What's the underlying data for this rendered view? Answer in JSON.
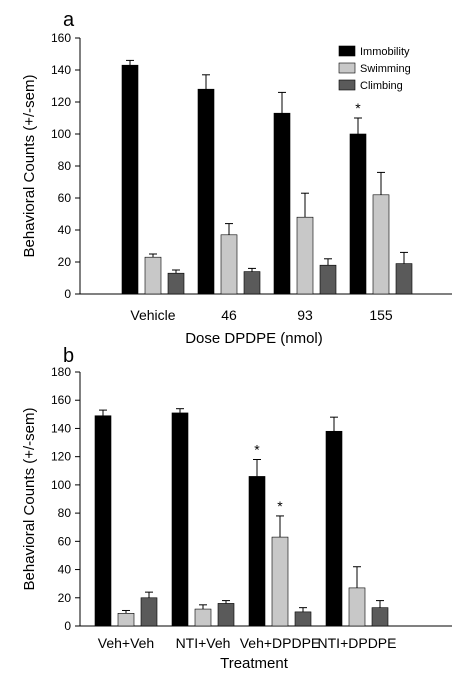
{
  "colors": {
    "immobility": "#000000",
    "swimming": "#c8c8c8",
    "climbing": "#5a5a5a",
    "axis": "#000000",
    "background": "#ffffff"
  },
  "chart_data": [
    {
      "panel_label": "a",
      "type": "bar",
      "title": "",
      "xlabel": "Dose DPDPE (nmol)",
      "ylabel": "Behavioral Counts (+/-sem)",
      "ylim": [
        0,
        160
      ],
      "yticks": [
        0,
        20,
        40,
        60,
        80,
        100,
        120,
        140,
        160
      ],
      "grid": false,
      "legend_placement": "top-right",
      "categories": [
        "Vehicle",
        "46",
        "93",
        "155"
      ],
      "series": [
        {
          "name": "Immobility",
          "color_key": "immobility",
          "values": [
            143,
            128,
            113,
            100
          ],
          "errors": [
            3,
            9,
            13,
            10
          ]
        },
        {
          "name": "Swimming",
          "color_key": "swimming",
          "values": [
            23,
            37,
            48,
            62
          ],
          "errors": [
            2,
            7,
            15,
            14
          ]
        },
        {
          "name": "Climbing",
          "color_key": "climbing",
          "values": [
            13,
            14,
            18,
            19
          ],
          "errors": [
            2,
            2,
            4,
            7
          ]
        }
      ],
      "annotations": [
        {
          "text": "*",
          "category_index": 3,
          "series_index": 0
        }
      ]
    },
    {
      "panel_label": "b",
      "type": "bar",
      "title": "",
      "xlabel": "Treatment",
      "ylabel": "Behavioral Counts (+/-sem)",
      "ylim": [
        0,
        180
      ],
      "yticks": [
        0,
        20,
        40,
        60,
        80,
        100,
        120,
        140,
        160,
        180
      ],
      "grid": false,
      "categories": [
        "Veh+Veh",
        "NTI+Veh",
        "Veh+DPDPE",
        "NTI+DPDPE"
      ],
      "series": [
        {
          "color_key": "immobility",
          "values": [
            149,
            151,
            106,
            138
          ],
          "errors": [
            4,
            3,
            12,
            10
          ]
        },
        {
          "color_key": "swimming",
          "values": [
            9,
            12,
            63,
            27
          ],
          "errors": [
            2,
            3,
            15,
            15
          ]
        },
        {
          "color_key": "climbing",
          "values": [
            20,
            16,
            10,
            13
          ],
          "errors": [
            4,
            2,
            3,
            5
          ]
        }
      ],
      "annotations": [
        {
          "text": "*",
          "category_index": 2,
          "series_index": 0
        },
        {
          "text": "*",
          "category_index": 2,
          "series_index": 1
        }
      ]
    }
  ]
}
